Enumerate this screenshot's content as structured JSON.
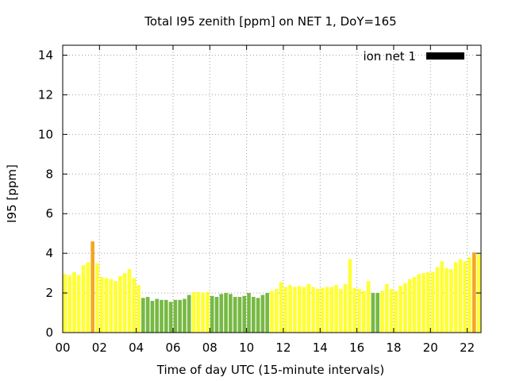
{
  "chart_data": {
    "type": "bar",
    "title": "Total I95 zenith [ppm] on NET 1, DoY=165",
    "xlabel": "Time of day UTC (15-minute intervals)",
    "ylabel": "I95 [ppm]",
    "xlim": [
      0,
      22.75
    ],
    "ylim": [
      0,
      14.5
    ],
    "x_ticks": [
      0,
      2,
      4,
      6,
      8,
      10,
      12,
      14,
      16,
      18,
      20,
      22
    ],
    "x_tick_labels": [
      "00",
      "02",
      "04",
      "06",
      "08",
      "10",
      "12",
      "14",
      "16",
      "18",
      "20",
      "22"
    ],
    "y_ticks": [
      0,
      2,
      4,
      6,
      8,
      10,
      12,
      14
    ],
    "y_tick_labels": [
      "0",
      "2",
      "4",
      "6",
      "8",
      "10",
      "12",
      "14"
    ],
    "grid": true,
    "legend": {
      "placement": "top-right",
      "entries": [
        {
          "label": "ion net 1",
          "color": "#000000"
        }
      ]
    },
    "bar_width_hours": 0.2,
    "colors": {
      "yellow": "#ffff33",
      "green": "#77b944",
      "orange": "#f5a623",
      "grid": "#a0a0a0"
    },
    "x": [
      0.125,
      0.375,
      0.625,
      0.875,
      1.125,
      1.375,
      1.625,
      1.875,
      2.125,
      2.375,
      2.625,
      2.875,
      3.125,
      3.375,
      3.625,
      3.875,
      4.125,
      4.375,
      4.625,
      4.875,
      5.125,
      5.375,
      5.625,
      5.875,
      6.125,
      6.375,
      6.625,
      6.875,
      7.125,
      7.375,
      7.625,
      7.875,
      8.125,
      8.375,
      8.625,
      8.875,
      9.125,
      9.375,
      9.625,
      9.875,
      10.125,
      10.375,
      10.625,
      10.875,
      11.125,
      11.375,
      11.625,
      11.875,
      12.125,
      12.375,
      12.625,
      12.875,
      13.125,
      13.375,
      13.625,
      13.875,
      14.125,
      14.375,
      14.625,
      14.875,
      15.125,
      15.375,
      15.625,
      15.875,
      16.125,
      16.375,
      16.625,
      16.875,
      17.125,
      17.375,
      17.625,
      17.875,
      18.125,
      18.375,
      18.625,
      18.875,
      19.125,
      19.375,
      19.625,
      19.875,
      20.125,
      20.375,
      20.625,
      20.875,
      21.125,
      21.375,
      21.625,
      21.875,
      22.125,
      22.375,
      22.625
    ],
    "values": [
      2.95,
      2.9,
      3.05,
      2.9,
      3.4,
      3.55,
      4.6,
      3.5,
      2.8,
      2.75,
      2.7,
      2.6,
      2.85,
      3.0,
      3.2,
      2.75,
      2.4,
      1.75,
      1.8,
      1.6,
      1.7,
      1.65,
      1.65,
      1.55,
      1.65,
      1.65,
      1.7,
      1.9,
      2.05,
      2.05,
      2.0,
      2.05,
      1.85,
      1.8,
      1.95,
      2.0,
      1.95,
      1.8,
      1.8,
      1.85,
      2.0,
      1.8,
      1.75,
      1.9,
      2.0,
      2.1,
      2.2,
      2.55,
      2.3,
      2.4,
      2.3,
      2.35,
      2.3,
      2.45,
      2.3,
      2.2,
      2.25,
      2.3,
      2.3,
      2.4,
      2.2,
      2.45,
      3.7,
      2.25,
      2.2,
      2.1,
      2.6,
      2.0,
      2.0,
      2.1,
      2.45,
      2.2,
      2.1,
      2.35,
      2.5,
      2.7,
      2.8,
      2.95,
      3.0,
      3.05,
      3.05,
      3.3,
      3.6,
      3.25,
      3.2,
      3.55,
      3.7,
      3.6,
      3.8,
      4.05,
      3.95
    ],
    "bar_colors": [
      "yellow",
      "yellow",
      "yellow",
      "yellow",
      "yellow",
      "yellow",
      "orange",
      "yellow",
      "yellow",
      "yellow",
      "yellow",
      "yellow",
      "yellow",
      "yellow",
      "yellow",
      "yellow",
      "yellow",
      "green",
      "green",
      "green",
      "green",
      "green",
      "green",
      "green",
      "green",
      "green",
      "green",
      "green",
      "yellow",
      "yellow",
      "yellow",
      "yellow",
      "green",
      "green",
      "green",
      "green",
      "green",
      "green",
      "green",
      "green",
      "green",
      "green",
      "green",
      "green",
      "green",
      "yellow",
      "yellow",
      "yellow",
      "yellow",
      "yellow",
      "yellow",
      "yellow",
      "yellow",
      "yellow",
      "yellow",
      "yellow",
      "yellow",
      "yellow",
      "yellow",
      "yellow",
      "yellow",
      "yellow",
      "yellow",
      "yellow",
      "yellow",
      "yellow",
      "yellow",
      "green",
      "green",
      "yellow",
      "yellow",
      "yellow",
      "yellow",
      "yellow",
      "yellow",
      "yellow",
      "yellow",
      "yellow",
      "yellow",
      "yellow",
      "yellow",
      "yellow",
      "yellow",
      "yellow",
      "yellow",
      "yellow",
      "yellow",
      "yellow",
      "yellow",
      "orange",
      "yellow"
    ]
  }
}
